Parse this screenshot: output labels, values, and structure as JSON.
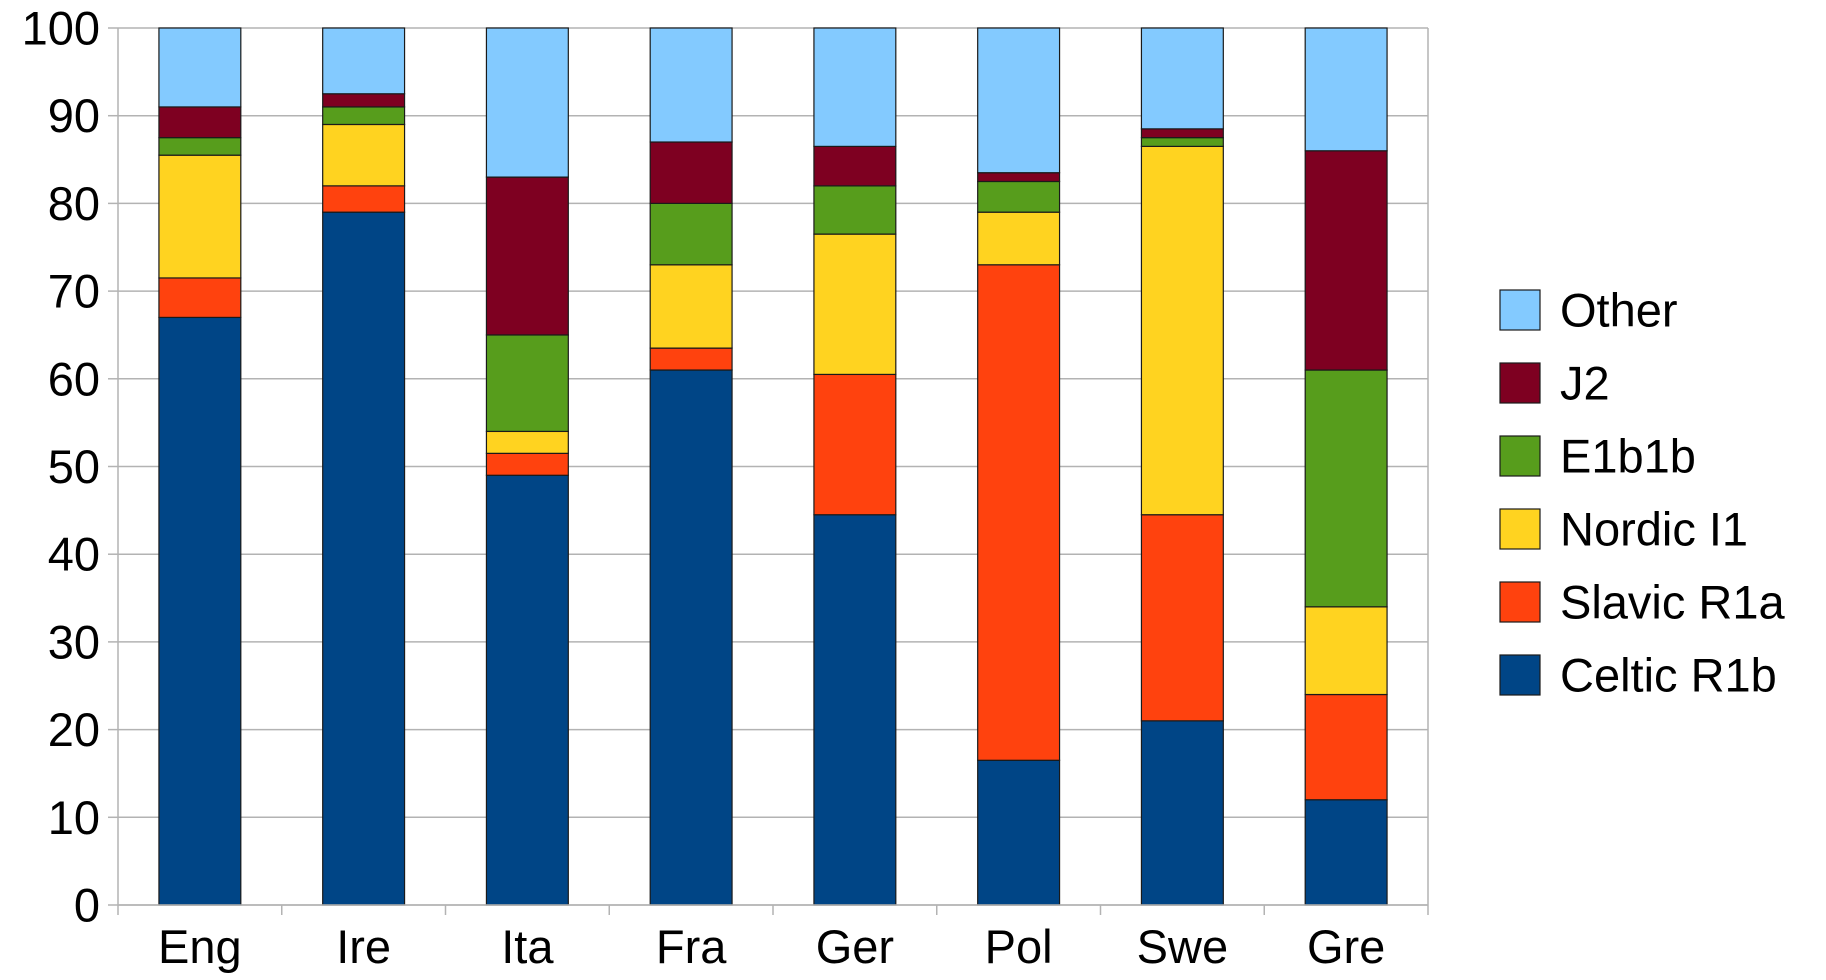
{
  "chart_data": {
    "type": "bar",
    "stacked": true,
    "title": "",
    "xlabel": "",
    "ylabel": "",
    "ylim": [
      0,
      100
    ],
    "yticks": [
      "0",
      "10",
      "20",
      "30",
      "40",
      "50",
      "60",
      "70",
      "80",
      "90",
      "100"
    ],
    "grid": "horizontal",
    "legend_position": "right",
    "categories": [
      "Eng",
      "Ire",
      "Ita",
      "Fra",
      "Ger",
      "Pol",
      "Swe",
      "Gre"
    ],
    "series": [
      {
        "name": "Celtic R1b",
        "color": "#004586",
        "values": [
          67,
          79,
          49,
          61,
          44.5,
          16.5,
          21,
          12
        ]
      },
      {
        "name": "Slavic R1a",
        "color": "#ff420e",
        "values": [
          4.5,
          3,
          2.5,
          2.5,
          16,
          56.5,
          23.5,
          12
        ]
      },
      {
        "name": "Nordic I1",
        "color": "#ffd320",
        "values": [
          14,
          7,
          2.5,
          9.5,
          16,
          6,
          42,
          10
        ]
      },
      {
        "name": "E1b1b",
        "color": "#579d1c",
        "values": [
          2,
          2,
          11,
          7,
          5.5,
          3.5,
          1,
          27
        ]
      },
      {
        "name": "J2",
        "color": "#7e0021",
        "values": [
          3.5,
          1.5,
          18,
          7,
          4.5,
          1,
          1,
          25
        ]
      },
      {
        "name": "Other",
        "color": "#83caff",
        "values": [
          9,
          7.5,
          17,
          13,
          13.5,
          16.5,
          11.5,
          14
        ]
      }
    ]
  }
}
